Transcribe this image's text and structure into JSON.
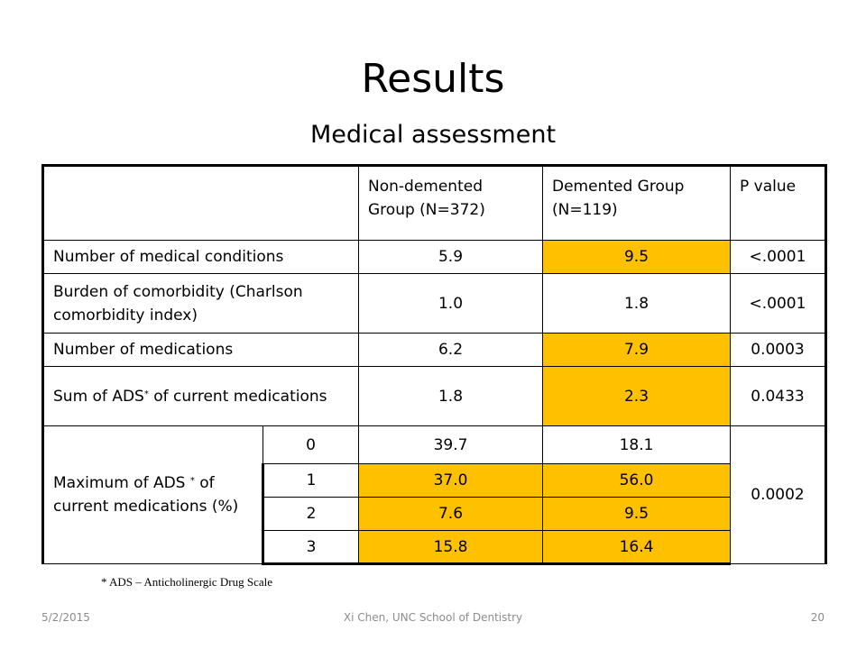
{
  "slide": {
    "title": "Results",
    "subtitle": "Medical assessment"
  },
  "table": {
    "headers": {
      "col1": "Non-demented Group (N=372)",
      "col2": "Demented Group (N=119)",
      "col3": "P value"
    },
    "rows": [
      {
        "label": "Number of medical conditions",
        "v1": "5.9",
        "v2": "9.5",
        "p": "<.0001"
      },
      {
        "label": "Burden of comorbidity (Charlson comorbidity index)",
        "v1": "1.0",
        "v2": "1.8",
        "p": "<.0001"
      },
      {
        "label": "Number of medications",
        "v1": "6.2",
        "v2": "7.9",
        "p": "0.0003"
      },
      {
        "label_pre": "Sum of ADS",
        "label_sup": "*",
        "label_post": " of current medications",
        "v1": "1.8",
        "v2": "2.3",
        "p": "0.0433"
      }
    ],
    "max_ads": {
      "label_pre": "Maximum of ADS ",
      "label_sup": "*",
      "label_post": " of current medications (%)",
      "p": "0.0002",
      "levels": [
        {
          "level": "0",
          "v1": "39.7",
          "v2": "18.1"
        },
        {
          "level": "1",
          "v1": "37.0",
          "v2": "56.0"
        },
        {
          "level": "2",
          "v1": "7.6",
          "v2": "9.5"
        },
        {
          "level": "3",
          "v1": "15.8",
          "v2": "16.4"
        }
      ]
    },
    "highlight_color": "#ffc000"
  },
  "footnote": "* ADS – Anticholinergic Drug Scale",
  "footer": {
    "date": "5/2/2015",
    "author": "Xi Chen, UNC School of Dentistry",
    "page": "20"
  }
}
